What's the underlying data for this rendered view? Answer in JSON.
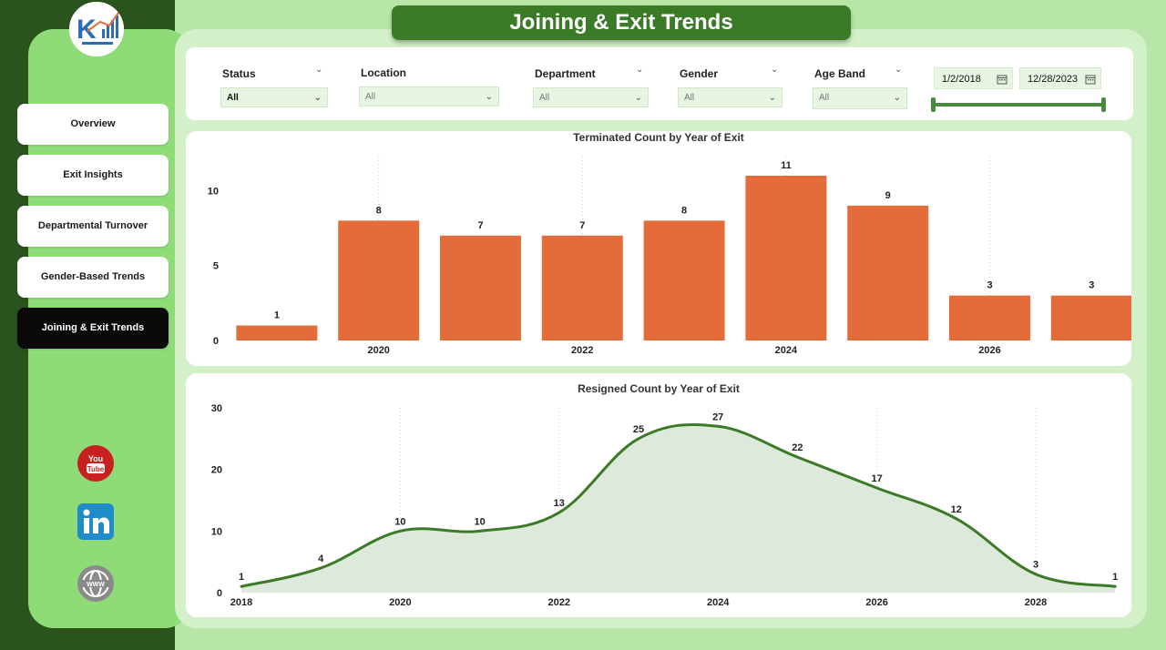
{
  "app": {
    "title": "Joining & Exit Trends"
  },
  "nav": {
    "items": [
      {
        "label": "Overview"
      },
      {
        "label": "Exit Insights"
      },
      {
        "label": "Departmental Turnover"
      },
      {
        "label": "Gender-Based Trends"
      },
      {
        "label": "Joining & Exit Trends",
        "active": true
      }
    ]
  },
  "social": {
    "icons": [
      "youtube-icon",
      "linkedin-icon",
      "website-globe-icon"
    ],
    "youtube_text": "You Tube"
  },
  "filters": {
    "status": {
      "label": "Status",
      "value": "All"
    },
    "location": {
      "label": "Location",
      "value": "All"
    },
    "department": {
      "label": "Department",
      "value": "All"
    },
    "gender": {
      "label": "Gender",
      "value": "All"
    },
    "age_band": {
      "label": "Age Band",
      "value": "All"
    },
    "date_range": {
      "start": "1/2/2018",
      "end": "12/28/2023"
    }
  },
  "colors": {
    "bar": "#e46c3a",
    "line": "#3b7a26",
    "area": "#dde9da",
    "dark_green": "#2b531c",
    "panel_green": "#8fdb78"
  },
  "chart_data": [
    {
      "type": "bar",
      "title": "Terminated Count by Year of Exit",
      "x": [
        2019,
        2020,
        2021,
        2022,
        2023,
        2024,
        2025,
        2026,
        2027
      ],
      "values": [
        1,
        8,
        7,
        7,
        8,
        11,
        9,
        3,
        3
      ],
      "x_tick_labels": [
        "2020",
        "2022",
        "2024",
        "2026"
      ],
      "y_ticks": [
        0,
        5,
        10
      ],
      "ylim": [
        0,
        11
      ],
      "grid": "vertical dotted"
    },
    {
      "type": "area",
      "title": "Resigned Count by Year of Exit",
      "x": [
        2018,
        2019,
        2020,
        2021,
        2022,
        2023,
        2024,
        2025,
        2026,
        2027,
        2028,
        2029
      ],
      "values": [
        1,
        4,
        10,
        10,
        13,
        25,
        27,
        22,
        17,
        12,
        3,
        1
      ],
      "x_tick_labels": [
        "2018",
        "2020",
        "2022",
        "2024",
        "2026",
        "2028"
      ],
      "y_ticks": [
        0,
        10,
        20,
        30
      ],
      "ylim": [
        0,
        30
      ],
      "grid": "vertical dotted"
    }
  ]
}
